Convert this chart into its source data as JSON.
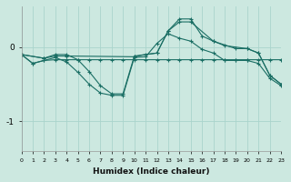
{
  "title": "",
  "xlabel": "Humidex (Indice chaleur)",
  "ylabel": "",
  "background_color": "#cce8e0",
  "grid_color": "#aad4cc",
  "line_color": "#1a6e64",
  "xlim": [
    0,
    23
  ],
  "ylim": [
    -1.4,
    0.55
  ],
  "yticks": [
    -1,
    0
  ],
  "xticks": [
    0,
    1,
    2,
    3,
    4,
    5,
    6,
    7,
    8,
    9,
    10,
    11,
    12,
    13,
    14,
    15,
    16,
    17,
    18,
    19,
    20,
    21,
    22,
    23
  ],
  "series": [
    {
      "x": [
        0,
        1,
        2,
        3,
        4,
        5,
        6,
        7,
        8,
        9,
        10,
        11,
        12,
        13,
        14,
        15,
        16,
        17,
        18,
        19,
        20,
        21,
        22,
        23
      ],
      "y": [
        -0.1,
        -0.22,
        -0.18,
        -0.17,
        -0.17,
        -0.17,
        -0.17,
        -0.17,
        -0.17,
        -0.17,
        -0.17,
        -0.17,
        -0.17,
        -0.17,
        -0.17,
        -0.17,
        -0.17,
        -0.17,
        -0.17,
        -0.17,
        -0.17,
        -0.17,
        -0.17,
        -0.17
      ]
    },
    {
      "x": [
        0,
        1,
        2,
        3,
        4,
        5,
        6,
        7,
        8,
        9,
        10,
        11,
        12,
        13,
        14,
        15,
        16,
        17,
        18,
        19,
        20,
        21,
        22,
        23
      ],
      "y": [
        -0.1,
        -0.22,
        -0.18,
        -0.14,
        -0.2,
        -0.34,
        -0.5,
        -0.62,
        -0.65,
        -0.65,
        -0.14,
        -0.13,
        0.05,
        0.18,
        0.12,
        0.08,
        -0.03,
        -0.08,
        -0.18,
        -0.18,
        -0.18,
        -0.22,
        -0.42,
        -0.52
      ]
    },
    {
      "x": [
        0,
        2,
        3,
        4,
        5,
        6,
        7,
        8,
        9,
        10,
        12,
        13,
        14,
        15,
        17,
        19,
        20,
        21,
        22,
        23
      ],
      "y": [
        -0.1,
        -0.15,
        -0.1,
        -0.1,
        -0.17,
        -0.33,
        -0.52,
        -0.63,
        -0.63,
        -0.12,
        -0.08,
        0.22,
        0.34,
        0.34,
        0.08,
        -0.02,
        -0.02,
        -0.08,
        -0.38,
        -0.5
      ]
    },
    {
      "x": [
        0,
        2,
        3,
        4,
        10,
        11,
        12,
        13,
        14,
        15,
        16,
        17,
        18,
        20,
        21,
        22,
        23
      ],
      "y": [
        -0.1,
        -0.15,
        -0.12,
        -0.12,
        -0.13,
        -0.1,
        -0.08,
        0.22,
        0.38,
        0.38,
        0.15,
        0.08,
        0.02,
        -0.02,
        -0.08,
        -0.38,
        -0.5
      ]
    }
  ]
}
